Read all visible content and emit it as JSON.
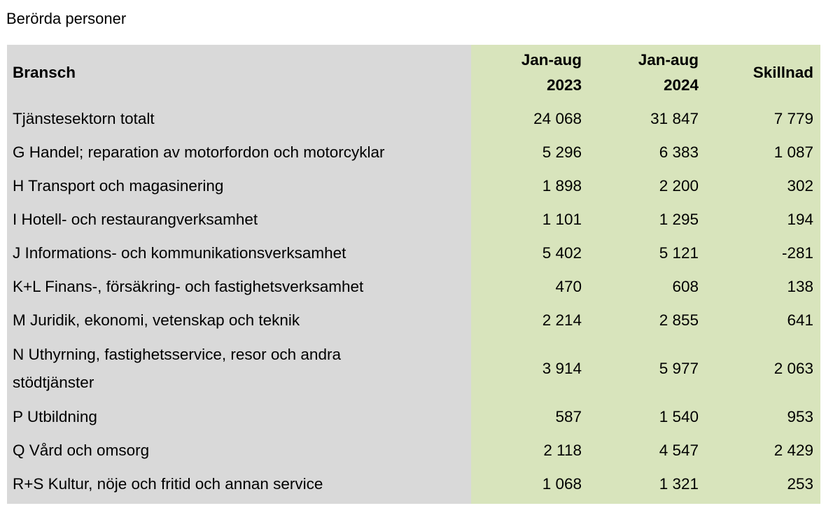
{
  "caption": "Berörda personer",
  "table": {
    "headers": {
      "label": "Bransch",
      "col1_line1": "Jan-aug",
      "col1_line2": "2023",
      "col2_line1": "Jan-aug",
      "col2_line2": "2024",
      "col3": "Skillnad"
    },
    "rows": [
      {
        "label": "Tjänstesektorn totalt",
        "v2023": "24 068",
        "v2024": "31 847",
        "diff": "7 779"
      },
      {
        "label": "G Handel; reparation av motorfordon och motorcyklar",
        "v2023": "5 296",
        "v2024": "6 383",
        "diff": "1 087"
      },
      {
        "label": "H Transport och magasinering",
        "v2023": "1 898",
        "v2024": "2 200",
        "diff": "302"
      },
      {
        "label": "I Hotell- och restaurangverksamhet",
        "v2023": "1 101",
        "v2024": "1 295",
        "diff": "194"
      },
      {
        "label": "J Informations- och kommunikationsverksamhet",
        "v2023": "5 402",
        "v2024": "5 121",
        "diff": "-281"
      },
      {
        "label": "K+L Finans-, försäkring- och fastighetsverksamhet",
        "v2023": "470",
        "v2024": "608",
        "diff": "138"
      },
      {
        "label": "M Juridik, ekonomi, vetenskap och teknik",
        "v2023": "2 214",
        "v2024": "2 855",
        "diff": "641"
      },
      {
        "label_line1": "N Uthyrning, fastighetsservice, resor och andra",
        "label_line2": "stödtjänster",
        "v2023": "3 914",
        "v2024": "5 977",
        "diff": "2 063"
      },
      {
        "label": "P Utbildning",
        "v2023": "587",
        "v2024": "1 540",
        "diff": "953"
      },
      {
        "label": "Q Vård och omsorg",
        "v2023": "2 118",
        "v2024": "4 547",
        "diff": "2 429"
      },
      {
        "label": "R+S Kultur, nöje och fritid och annan service",
        "v2023": "1 068",
        "v2024": "1 321",
        "diff": "253"
      }
    ]
  }
}
